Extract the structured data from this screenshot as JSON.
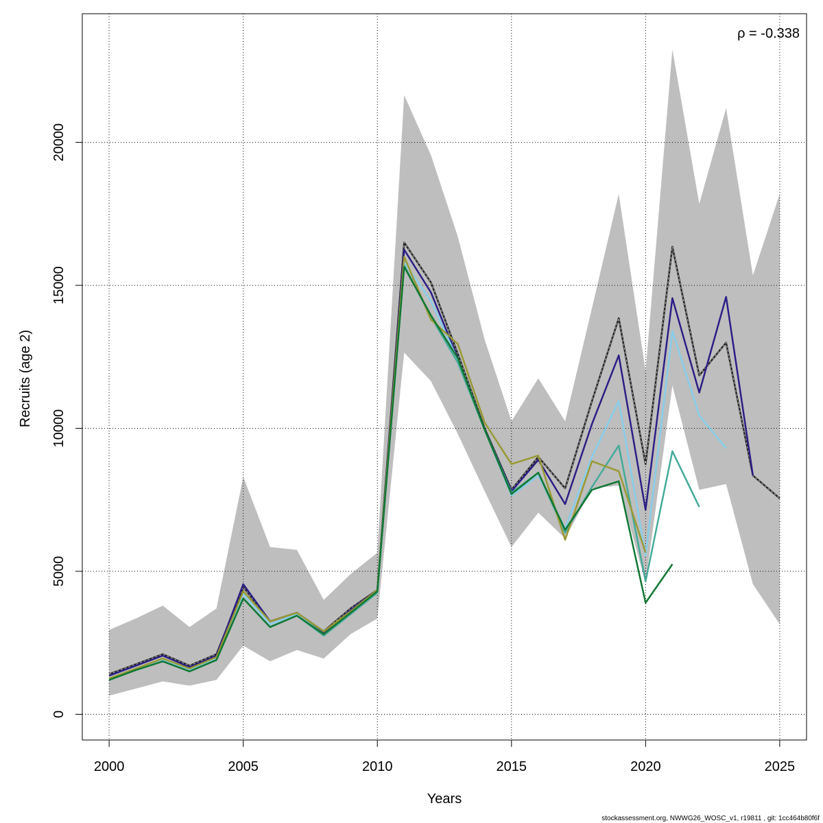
{
  "chart_data": {
    "type": "line",
    "xlabel": "Years",
    "ylabel": "Recruits (age 2)",
    "annotation": "ρ = -0.338",
    "footer": "stockassessment.org, NWWG26_WOSC_v1, r19811 , git: 1cc464b80f6f",
    "xlim": [
      1999,
      2026
    ],
    "ylim": [
      -900,
      24500
    ],
    "xticks": [
      2000,
      2005,
      2010,
      2015,
      2020,
      2025
    ],
    "yticks": [
      0,
      5000,
      10000,
      15000,
      20000
    ],
    "grid": true,
    "confidence_band": {
      "color": "#bebebe",
      "x": [
        2000,
        2001,
        2002,
        2003,
        2004,
        2005,
        2006,
        2007,
        2008,
        2009,
        2010,
        2011,
        2012,
        2013,
        2014,
        2015,
        2016,
        2017,
        2018,
        2019,
        2020,
        2021,
        2022,
        2023,
        2024,
        2025
      ],
      "upper": [
        2950,
        3350,
        3800,
        3050,
        3700,
        8300,
        5850,
        5750,
        4000,
        4900,
        5650,
        21650,
        19550,
        16700,
        13100,
        10250,
        11750,
        10250,
        14200,
        18200,
        12000,
        23250,
        17850,
        21200,
        15350,
        18200
      ],
      "lower": [
        650,
        900,
        1150,
        1000,
        1200,
        2400,
        1850,
        2250,
        1950,
        2800,
        3350,
        12650,
        11650,
        9800,
        7800,
        5850,
        7050,
        6150,
        7900,
        8000,
        4600,
        11500,
        7850,
        8050,
        4550,
        3150
      ]
    },
    "series": [
      {
        "color": "#222222",
        "dashed": true,
        "width": 2.5,
        "x": [
          2000,
          2001,
          2002,
          2003,
          2004,
          2005,
          2006,
          2007,
          2008,
          2009,
          2010,
          2011,
          2012,
          2013,
          2014,
          2015,
          2016,
          2017,
          2018,
          2019,
          2020,
          2021,
          2022,
          2023,
          2024,
          2025
        ],
        "values": [
          1400,
          1750,
          2100,
          1700,
          2100,
          4450,
          3250,
          3550,
          2900,
          3700,
          4350,
          16500,
          15100,
          12600,
          10000,
          7850,
          9000,
          7900,
          10950,
          13850,
          8750,
          16350,
          11850,
          13000,
          8350,
          7550
        ]
      },
      {
        "color": "#2b1e85",
        "dashed": false,
        "width": 2.5,
        "x": [
          2000,
          2001,
          2002,
          2003,
          2004,
          2005,
          2006,
          2007,
          2008,
          2009,
          2010,
          2011,
          2012,
          2013,
          2014,
          2015,
          2016,
          2017,
          2018,
          2019,
          2020,
          2021,
          2022,
          2023,
          2024
        ],
        "values": [
          1350,
          1700,
          2050,
          1650,
          2050,
          4550,
          3250,
          3550,
          2850,
          3650,
          4350,
          16250,
          14750,
          12450,
          9950,
          7800,
          8900,
          7350,
          10150,
          12550,
          7150,
          14550,
          11250,
          14600,
          8350
        ]
      },
      {
        "color": "#87ceeb",
        "dashed": false,
        "width": 2.5,
        "x": [
          2000,
          2001,
          2002,
          2003,
          2004,
          2005,
          2006,
          2007,
          2008,
          2009,
          2010,
          2011,
          2012,
          2013,
          2014,
          2015,
          2016,
          2017,
          2018,
          2019,
          2020,
          2021,
          2022,
          2023
        ],
        "values": [
          1250,
          1600,
          1900,
          1550,
          1950,
          4200,
          3150,
          3500,
          2800,
          3550,
          4300,
          15800,
          14450,
          12400,
          9950,
          7650,
          8350,
          6500,
          9000,
          10950,
          5550,
          13400,
          10450,
          9300
        ]
      },
      {
        "color": "#44aa99",
        "dashed": false,
        "width": 2.5,
        "x": [
          2000,
          2001,
          2002,
          2003,
          2004,
          2005,
          2006,
          2007,
          2008,
          2009,
          2010,
          2011,
          2012,
          2013,
          2014,
          2015,
          2016,
          2017,
          2018,
          2019,
          2020,
          2021,
          2022
        ],
        "values": [
          1200,
          1550,
          1850,
          1500,
          1900,
          4050,
          3050,
          3450,
          2750,
          3500,
          4250,
          15700,
          13900,
          12300,
          9950,
          7750,
          8450,
          6350,
          7950,
          9400,
          4650,
          9200,
          7250
        ]
      },
      {
        "color": "#999933",
        "dashed": false,
        "width": 2.5,
        "x": [
          2000,
          2001,
          2002,
          2003,
          2004,
          2005,
          2006,
          2007,
          2008,
          2009,
          2010,
          2011,
          2012,
          2013,
          2014,
          2015,
          2016,
          2017,
          2018,
          2019,
          2020
        ],
        "values": [
          1250,
          1600,
          1950,
          1600,
          2000,
          4300,
          3250,
          3550,
          2900,
          3600,
          4350,
          16000,
          13800,
          12950,
          10200,
          8750,
          9050,
          6100,
          8850,
          8500,
          5650
        ]
      },
      {
        "color": "#117733",
        "dashed": false,
        "width": 2.5,
        "x": [
          2000,
          2001,
          2002,
          2003,
          2004,
          2005,
          2006,
          2007,
          2008,
          2009,
          2010,
          2011,
          2012,
          2013,
          2014,
          2015,
          2016,
          2017,
          2018,
          2019,
          2020,
          2021
        ],
        "values": [
          1200,
          1550,
          1850,
          1500,
          1900,
          4050,
          3050,
          3450,
          2800,
          3550,
          4300,
          15650,
          13950,
          12450,
          9950,
          7700,
          8450,
          6450,
          7850,
          8150,
          3900,
          5250
        ]
      }
    ]
  }
}
